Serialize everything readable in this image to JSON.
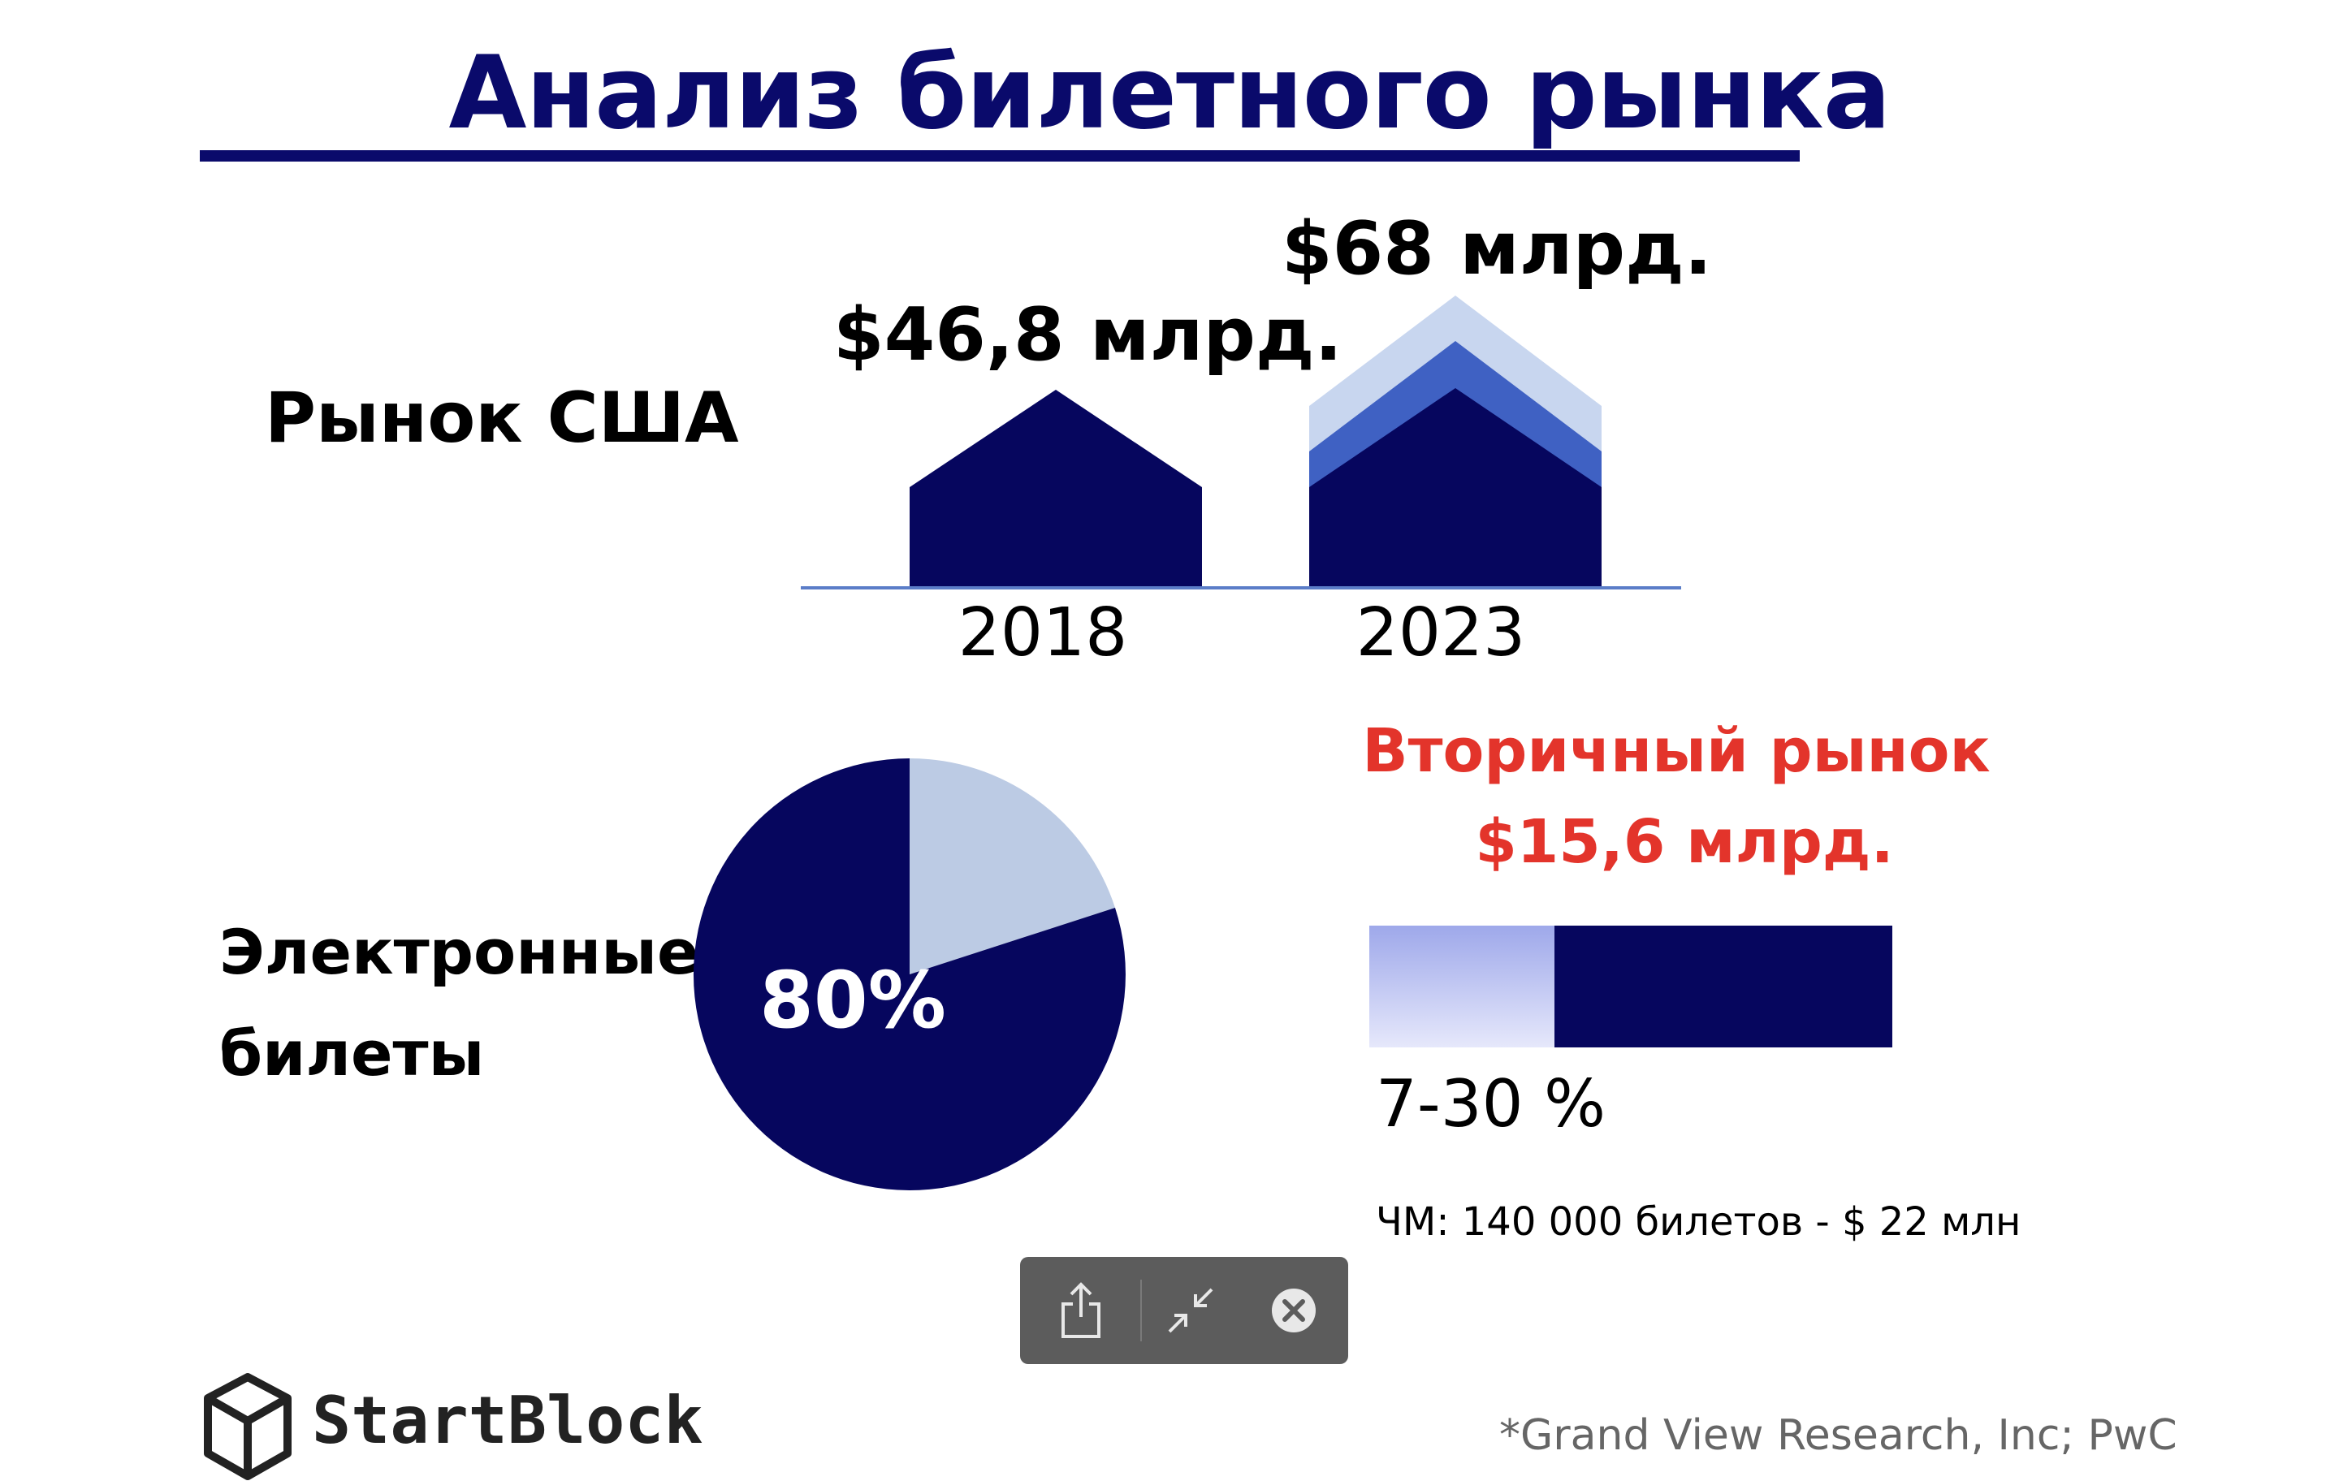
{
  "title": "Анализ билетного рынка",
  "us_market": {
    "label": "Рынок США",
    "value_2018": "$46,8 млрд.",
    "value_2023": "$68 млрд."
  },
  "chart_data": [
    {
      "type": "bar",
      "categories": [
        "2018",
        "2023"
      ],
      "values": [
        46.8,
        68
      ],
      "labels": [
        "$46,8 млрд.",
        "$68 млрд."
      ]
    },
    {
      "type": "pie",
      "labels": [
        "Электронные билеты",
        ""
      ],
      "values": [
        80,
        20
      ],
      "data_label": "80%"
    },
    {
      "type": "bar",
      "orientation": "horizontal",
      "stacked": true,
      "values": [
        30,
        70
      ],
      "label": "7-30 %"
    }
  ],
  "e_tickets": {
    "label_line1": "Электронные",
    "label_line2": "билеты",
    "percent": "80%"
  },
  "secondary_market": {
    "title": "Вторичный рынок",
    "value": "$15,6 млрд.",
    "range": "7-30 %",
    "note": "ЧМ: 140 000 билетов - $ 22 млн"
  },
  "toolbar": {
    "share_icon": "share-icon",
    "collapse_icon": "collapse-icon",
    "close_icon": "close-icon"
  },
  "logo": {
    "text": "StartBlock",
    "icon": "cube-icon"
  },
  "source": "*Grand View Research, Inc; PwC",
  "colors": {
    "navy": "#06065e",
    "title_navy": "#0a0a6b",
    "mid_blue": "#3f61c3",
    "light_blue": "#c8d6ef",
    "pie_light": "#bccbe4",
    "red": "#e3342b",
    "axis": "#5b7dc8",
    "toolbar_bg": "#5c5c5c"
  }
}
